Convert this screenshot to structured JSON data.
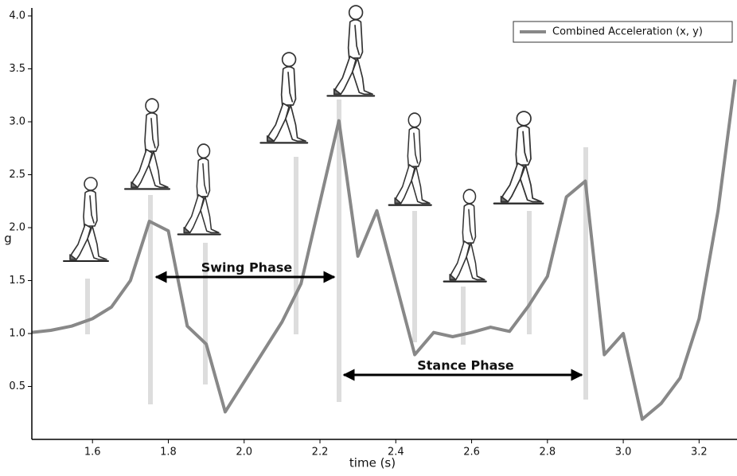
{
  "chart_data": {
    "type": "line",
    "x_label": "time (s)",
    "y_label": "g",
    "x": [
      1.44,
      1.49,
      1.545,
      1.6,
      1.65,
      1.7,
      1.75,
      1.8,
      1.85,
      1.9,
      1.95,
      2.1,
      2.15,
      2.25,
      2.3,
      2.35,
      2.45,
      2.5,
      2.55,
      2.6,
      2.65,
      2.7,
      2.75,
      2.8,
      2.85,
      2.9,
      2.95,
      3.0,
      3.05,
      3.1,
      3.15,
      3.2,
      3.25,
      3.295
    ],
    "series": [
      {
        "name": "Combined Acceleration (x, y)",
        "color": "#888888",
        "values": [
          1.01,
          1.03,
          1.07,
          1.14,
          1.25,
          1.5,
          2.06,
          1.97,
          1.07,
          0.9,
          0.26,
          1.11,
          1.47,
          3.01,
          1.73,
          2.16,
          0.8,
          1.01,
          0.97,
          1.01,
          1.06,
          1.02,
          1.26,
          1.54,
          2.29,
          2.44,
          0.8,
          1.0,
          0.19,
          0.34,
          0.58,
          1.14,
          2.16,
          3.4
        ]
      }
    ],
    "xlim": [
      1.44,
      3.3
    ],
    "ylim": [
      0,
      4
    ],
    "xticks": [
      1.6,
      1.8,
      {
        "value": 2,
        "label": "2.0"
      },
      2.2,
      2.4,
      2.6,
      2.8,
      {
        "value": 3,
        "label": "3.0"
      },
      3.2
    ],
    "yticks": [
      0.5,
      {
        "value": 1,
        "label": "1.0"
      },
      1.5,
      {
        "value": 2,
        "label": "2.0"
      },
      2.5,
      {
        "value": 3,
        "label": "3.0"
      },
      3.5,
      {
        "value": 4,
        "label": "4.0"
      }
    ],
    "legend": "upper right",
    "annotations": [
      "Swing Phase",
      "Stance Phase"
    ]
  }
}
